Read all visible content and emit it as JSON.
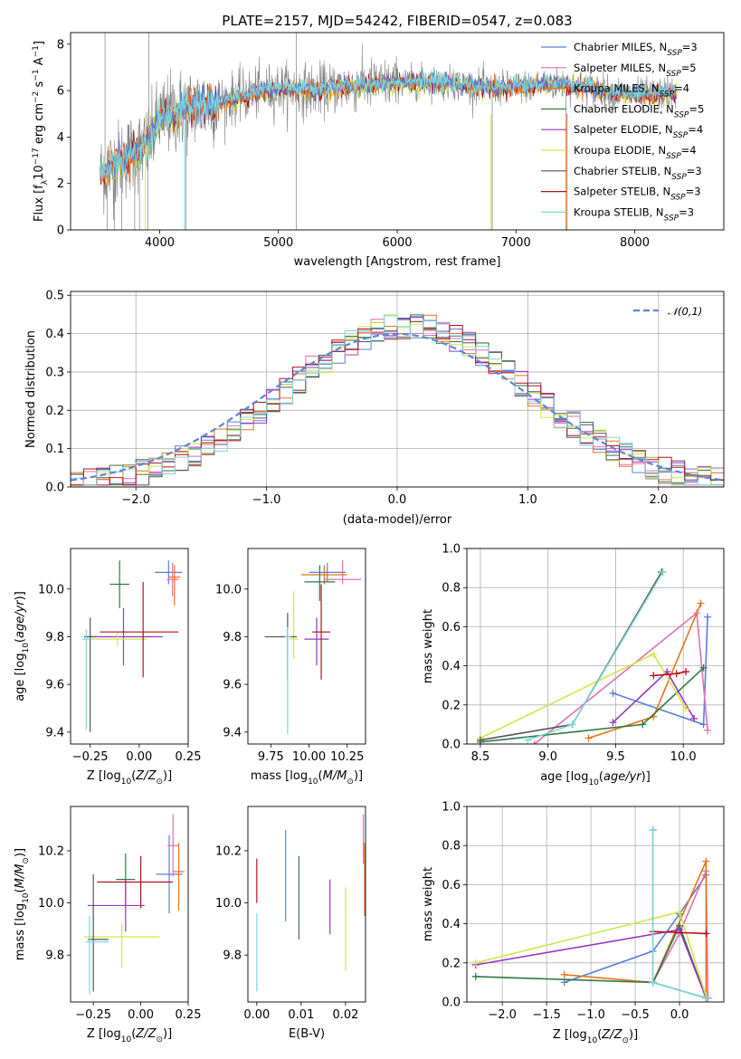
{
  "colors": {
    "Chabrier MILES": "#5a7fd6",
    "Salpeter MILES": "#e06fb4",
    "Kroupa MILES": "#e8731a",
    "Chabrier ELODIE": "#2f7a47",
    "Salpeter ELODIE": "#9a33c4",
    "Kroupa ELODIE": "#d2e64a",
    "Chabrier STELIB": "#555555",
    "Salpeter STELIB": "#b3121e",
    "Kroupa STELIB": "#7cd7dd"
  },
  "chart_data": [
    {
      "id": "spectrum",
      "type": "line",
      "title": "PLATE=2157, MJD=54242, FIBERID=0547, z=0.083",
      "xlabel": "wavelength [Angstrom, rest frame]",
      "ylabel": "Flux [f_λ10^-17 erg cm^-2 s^-1 A^-1]",
      "xlim": [
        3250,
        8750
      ],
      "ylim": [
        0,
        8.5
      ],
      "xticks": [
        4000,
        5000,
        6000,
        7000,
        8000
      ],
      "yticks": [
        0,
        2,
        4,
        6,
        8
      ],
      "legend_position": "top-right",
      "legend": [
        {
          "name": "Chabrier MILES",
          "nssp": "3"
        },
        {
          "name": "Salpeter MILES",
          "nssp": "5"
        },
        {
          "name": "Kroupa MILES",
          "nssp": "4"
        },
        {
          "name": "Chabrier ELODIE",
          "nssp": "5"
        },
        {
          "name": "Salpeter ELODIE",
          "nssp": "4"
        },
        {
          "name": "Kroupa ELODIE",
          "nssp": "4"
        },
        {
          "name": "Chabrier STELIB",
          "nssp": "3"
        },
        {
          "name": "Salpeter STELIB",
          "nssp": "3"
        },
        {
          "name": "Kroupa STELIB",
          "nssp": "3"
        }
      ],
      "data_trend": {
        "x": [
          3500,
          3700,
          3900,
          4000,
          4200,
          4500,
          4800,
          5000,
          5300,
          5600,
          5900,
          6200,
          6500,
          6800,
          7100,
          7400,
          7700,
          8000,
          8300
        ],
        "y": [
          2.4,
          3.1,
          3.6,
          4.8,
          5.2,
          5.5,
          5.9,
          6.1,
          6.0,
          6.2,
          6.3,
          6.4,
          6.3,
          6.1,
          6.2,
          6.3,
          6.0,
          5.8,
          5.9
        ]
      }
    },
    {
      "id": "residuals",
      "type": "histogram",
      "xlabel": "(data-model)/error",
      "ylabel": "Normed distribution",
      "xlim": [
        -2.5,
        2.5
      ],
      "ylim": [
        0,
        0.51
      ],
      "xticks": [
        -2,
        -1,
        0,
        1,
        2
      ],
      "yticks": [
        0.0,
        0.1,
        0.2,
        0.3,
        0.4,
        0.5
      ],
      "grid": true,
      "legend_position": "top-right",
      "reference_curve": "𝒩(0,1)"
    },
    {
      "id": "age-vs-Z",
      "type": "errorbar",
      "xlabel": "Z [log10(Z/Z⊙)]",
      "ylabel": "age [log10(age/yr)]",
      "xlim": [
        -0.35,
        0.25
      ],
      "ylim": [
        9.35,
        10.17
      ],
      "xticks": [
        -0.25,
        0.0,
        0.25
      ],
      "yticks": [
        9.4,
        9.6,
        9.8,
        10.0
      ],
      "points": [
        {
          "series": "Chabrier MILES",
          "x": 0.15,
          "y": 10.07,
          "xerr": [
            0.07,
            0.07
          ],
          "yerr": [
            0.05,
            0.05
          ]
        },
        {
          "series": "Salpeter MILES",
          "x": 0.17,
          "y": 10.04,
          "xerr": [
            0.03,
            0.03
          ],
          "yerr": [
            0.07,
            0.07
          ]
        },
        {
          "series": "Kroupa MILES",
          "x": 0.18,
          "y": 10.05,
          "xerr": [
            0.03,
            0.03
          ],
          "yerr": [
            0.12,
            0.05
          ]
        },
        {
          "series": "Chabrier ELODIE",
          "x": -0.1,
          "y": 10.02,
          "xerr": [
            0.05,
            0.05
          ],
          "yerr": [
            0.1,
            0.1
          ]
        },
        {
          "series": "Salpeter ELODIE",
          "x": -0.08,
          "y": 9.8,
          "xerr": [
            0.2,
            0.2
          ],
          "yerr": [
            0.12,
            0.12
          ]
        },
        {
          "series": "Kroupa ELODIE",
          "x": -0.11,
          "y": 9.79,
          "xerr": [
            0.15,
            0.15
          ],
          "yerr": [
            0.03,
            0.03
          ]
        },
        {
          "series": "Chabrier STELIB",
          "x": -0.25,
          "y": 9.8,
          "xerr": [
            0.03,
            0.03
          ],
          "yerr": [
            0.4,
            0.08
          ]
        },
        {
          "series": "Salpeter STELIB",
          "x": 0.02,
          "y": 9.82,
          "xerr": [
            0.22,
            0.18
          ],
          "yerr": [
            0.19,
            0.21
          ]
        },
        {
          "series": "Kroupa STELIB",
          "x": -0.27,
          "y": 9.79,
          "xerr": [
            0.02,
            0.02
          ],
          "yerr": [
            0.38,
            0.04
          ]
        }
      ]
    },
    {
      "id": "age-vs-mass",
      "type": "errorbar",
      "xlabel": "mass [log10(M/M⊙)]",
      "ylabel": "",
      "xlim": [
        9.6,
        10.37
      ],
      "ylim": [
        9.35,
        10.17
      ],
      "xticks": [
        9.75,
        10.0,
        10.25
      ],
      "yticks": [
        9.4,
        9.6,
        9.8,
        10.0
      ],
      "points": [
        {
          "series": "Chabrier MILES",
          "x": 10.12,
          "y": 10.07,
          "xerr": [
            0.12,
            0.12
          ],
          "yerr": [
            0.04,
            0.04
          ]
        },
        {
          "series": "Salpeter MILES",
          "x": 10.22,
          "y": 10.04,
          "xerr": [
            0.12,
            0.12
          ],
          "yerr": [
            0.02,
            0.08
          ]
        },
        {
          "series": "Kroupa MILES",
          "x": 10.1,
          "y": 10.06,
          "xerr": [
            0.15,
            0.15
          ],
          "yerr": [
            0.04,
            0.04
          ]
        },
        {
          "series": "Chabrier ELODIE",
          "x": 10.07,
          "y": 10.03,
          "xerr": [
            0.1,
            0.1
          ],
          "yerr": [
            0.08,
            0.07
          ]
        },
        {
          "series": "Salpeter ELODIE",
          "x": 10.05,
          "y": 9.79,
          "xerr": [
            0.08,
            0.08
          ],
          "yerr": [
            0.11,
            0.09
          ]
        },
        {
          "series": "Kroupa ELODIE",
          "x": 9.9,
          "y": 9.79,
          "xerr": [
            0.03,
            0.03
          ],
          "yerr": [
            0.08,
            0.2
          ]
        },
        {
          "series": "Chabrier STELIB",
          "x": 9.86,
          "y": 9.8,
          "xerr": [
            0.15,
            0.06
          ],
          "yerr": [
            0.18,
            0.1
          ]
        },
        {
          "series": "Salpeter STELIB",
          "x": 10.08,
          "y": 9.82,
          "xerr": [
            0.06,
            0.06
          ],
          "yerr": [
            0.2,
            0.2
          ]
        },
        {
          "series": "Kroupa STELIB",
          "x": 9.86,
          "y": 9.8,
          "xerr": [
            0.02,
            0.02
          ],
          "yerr": [
            0.41,
            0.04
          ]
        }
      ]
    },
    {
      "id": "weight-vs-age",
      "type": "line",
      "xlabel": "age [log10(age/yr)]",
      "ylabel": "mass weight",
      "xlim": [
        8.4,
        10.3
      ],
      "ylim": [
        0,
        1
      ],
      "xticks": [
        8.5,
        9.0,
        9.5,
        10.0
      ],
      "yticks": [
        0.0,
        0.2,
        0.4,
        0.6,
        0.8,
        1.0
      ],
      "grid": true,
      "series": [
        {
          "name": "Chabrier MILES",
          "x": [
            9.48,
            10.15,
            10.18
          ],
          "y": [
            0.26,
            0.1,
            0.65
          ]
        },
        {
          "name": "Salpeter MILES",
          "x": [
            8.9,
            10.1,
            10.18
          ],
          "y": [
            0.0,
            0.67,
            0.07
          ]
        },
        {
          "name": "Kroupa MILES",
          "x": [
            9.3,
            9.78,
            10.13
          ],
          "y": [
            0.03,
            0.14,
            0.72
          ]
        },
        {
          "name": "Chabrier ELODIE",
          "x": [
            8.5,
            9.7,
            10.15
          ],
          "y": [
            0.01,
            0.1,
            0.39
          ]
        },
        {
          "name": "Salpeter ELODIE",
          "x": [
            9.48,
            9.88,
            10.08
          ],
          "y": [
            0.11,
            0.37,
            0.13
          ]
        },
        {
          "name": "Kroupa ELODIE",
          "x": [
            8.5,
            9.78,
            10.02
          ],
          "y": [
            0.03,
            0.46,
            0.18
          ]
        },
        {
          "name": "Chabrier STELIB",
          "x": [
            8.5,
            9.18,
            9.84
          ],
          "y": [
            0.02,
            0.1,
            0.88
          ]
        },
        {
          "name": "Salpeter STELIB",
          "x": [
            9.78,
            9.95,
            10.02
          ],
          "y": [
            0.35,
            0.36,
            0.37
          ]
        },
        {
          "name": "Kroupa STELIB",
          "x": [
            8.85,
            9.18,
            9.85
          ],
          "y": [
            0.02,
            0.1,
            0.88
          ]
        }
      ]
    },
    {
      "id": "mass-vs-Z",
      "type": "errorbar",
      "xlabel": "Z [log10(Z/Z⊙)]",
      "ylabel": "mass [log10(M/M⊙)]",
      "xlim": [
        -0.37,
        0.25
      ],
      "ylim": [
        9.62,
        10.37
      ],
      "xticks": [
        -0.25,
        0.0,
        0.25
      ],
      "yticks": [
        9.8,
        10.0,
        10.2
      ],
      "points": [
        {
          "series": "Chabrier MILES",
          "x": 0.15,
          "y": 10.11,
          "xerr": [
            0.07,
            0.07
          ],
          "yerr": [
            0.15,
            0.15
          ]
        },
        {
          "series": "Salpeter MILES",
          "x": 0.17,
          "y": 10.22,
          "xerr": [
            0.03,
            0.03
          ],
          "yerr": [
            0.12,
            0.12
          ]
        },
        {
          "series": "Kroupa MILES",
          "x": 0.2,
          "y": 10.12,
          "xerr": [
            0.03,
            0.03
          ],
          "yerr": [
            0.15,
            0.11
          ]
        },
        {
          "series": "Chabrier ELODIE",
          "x": -0.08,
          "y": 10.09,
          "xerr": [
            0.05,
            0.05
          ],
          "yerr": [
            0.1,
            0.1
          ]
        },
        {
          "series": "Salpeter ELODIE",
          "x": -0.08,
          "y": 9.99,
          "xerr": [
            0.2,
            0.1
          ],
          "yerr": [
            0.1,
            0.1
          ]
        },
        {
          "series": "Kroupa ELODIE",
          "x": -0.1,
          "y": 9.87,
          "xerr": [
            0.2,
            0.2
          ],
          "yerr": [
            0.12,
            0.05
          ]
        },
        {
          "series": "Chabrier STELIB",
          "x": -0.25,
          "y": 9.86,
          "xerr": [
            0.03,
            0.08
          ],
          "yerr": [
            0.2,
            0.25
          ]
        },
        {
          "series": "Salpeter STELIB",
          "x": 0.0,
          "y": 10.08,
          "xerr": [
            0.23,
            0.17
          ],
          "yerr": [
            0.1,
            0.1
          ]
        },
        {
          "series": "Kroupa STELIB",
          "x": -0.27,
          "y": 9.85,
          "xerr": [
            0.02,
            0.1
          ],
          "yerr": [
            0.2,
            0.1
          ]
        }
      ]
    },
    {
      "id": "mass-vs-EBV",
      "type": "errorbar",
      "xlabel": "E(B-V)",
      "ylabel": "",
      "xlim": [
        -0.002,
        0.0245
      ],
      "ylim": [
        9.62,
        10.37
      ],
      "xticks": [
        0.0,
        0.01,
        0.02
      ],
      "yticks": [
        9.8,
        10.0,
        10.2
      ],
      "points": [
        {
          "series": "Salpeter STELIB",
          "x": 0.0,
          "y": 10.08,
          "xerr": [
            0,
            0
          ],
          "yerr": [
            0.08,
            0.09
          ]
        },
        {
          "series": "Kroupa STELIB",
          "x": 0.0,
          "y": 9.86,
          "xerr": [
            0,
            0
          ],
          "yerr": [
            0.2,
            0.1
          ]
        },
        {
          "series": "Chabrier MILES",
          "x": 0.0065,
          "y": 10.1,
          "xerr": [
            0,
            0
          ],
          "yerr": [
            0.17,
            0.18
          ]
        },
        {
          "series": "Chabrier ELODIE",
          "x": 0.0095,
          "y": 10.07,
          "xerr": [
            0,
            0
          ],
          "yerr": [
            0.21,
            0.11
          ]
        },
        {
          "series": "Salpeter ELODIE",
          "x": 0.0165,
          "y": 9.99,
          "xerr": [
            0,
            0
          ],
          "yerr": [
            0.11,
            0.1
          ]
        },
        {
          "series": "Kroupa ELODIE",
          "x": 0.02,
          "y": 9.88,
          "xerr": [
            0,
            0
          ],
          "yerr": [
            0.14,
            0.18
          ]
        },
        {
          "series": "Salpeter MILES",
          "x": 0.024,
          "y": 10.22,
          "xerr": [
            0,
            0
          ],
          "yerr": [
            0.07,
            0.12
          ]
        },
        {
          "series": "Kroupa MILES",
          "x": 0.0243,
          "y": 10.1,
          "xerr": [
            0,
            0
          ],
          "yerr": [
            0.15,
            0.13
          ]
        }
      ]
    },
    {
      "id": "weight-vs-Z",
      "type": "line",
      "xlabel": "Z [log10(Z/Z⊙)]",
      "ylabel": "mass weight",
      "xlim": [
        -2.4,
        0.5
      ],
      "ylim": [
        0,
        1
      ],
      "xticks": [
        -2.0,
        -1.5,
        -1.0,
        -0.5,
        0.0
      ],
      "yticks": [
        0.0,
        0.2,
        0.4,
        0.6,
        0.8,
        1.0
      ],
      "grid": true,
      "series": [
        {
          "name": "Chabrier MILES",
          "x": [
            -1.3,
            -0.3,
            0.0,
            0.3
          ],
          "y": [
            0.1,
            0.26,
            0.45,
            0.65
          ]
        },
        {
          "name": "Salpeter MILES",
          "x": [
            -0.3,
            0.0,
            0.3,
            0.32
          ],
          "y": [
            0.1,
            0.35,
            0.67,
            0.02
          ]
        },
        {
          "name": "Kroupa MILES",
          "x": [
            -1.3,
            -0.3,
            0.3,
            0.3
          ],
          "y": [
            0.14,
            0.1,
            0.72,
            0.03
          ]
        },
        {
          "name": "Chabrier ELODIE",
          "x": [
            -2.3,
            -0.3,
            0.0,
            0.3
          ],
          "y": [
            0.13,
            0.1,
            0.39,
            0.02
          ]
        },
        {
          "name": "Salpeter ELODIE",
          "x": [
            -2.3,
            0.0,
            0.3
          ],
          "y": [
            0.19,
            0.37,
            0.02
          ]
        },
        {
          "name": "Kroupa ELODIE",
          "x": [
            -2.3,
            0.0,
            0.3
          ],
          "y": [
            0.2,
            0.46,
            0.03
          ]
        },
        {
          "name": "Chabrier STELIB",
          "x": [
            -0.3,
            -0.3,
            0.3
          ],
          "y": [
            0.88,
            0.1,
            0.02
          ]
        },
        {
          "name": "Salpeter STELIB",
          "x": [
            -0.3,
            0.3
          ],
          "y": [
            0.36,
            0.35
          ]
        },
        {
          "name": "Kroupa STELIB",
          "x": [
            -0.3,
            -0.3,
            0.3
          ],
          "y": [
            0.88,
            0.1,
            0.02
          ]
        }
      ]
    }
  ]
}
